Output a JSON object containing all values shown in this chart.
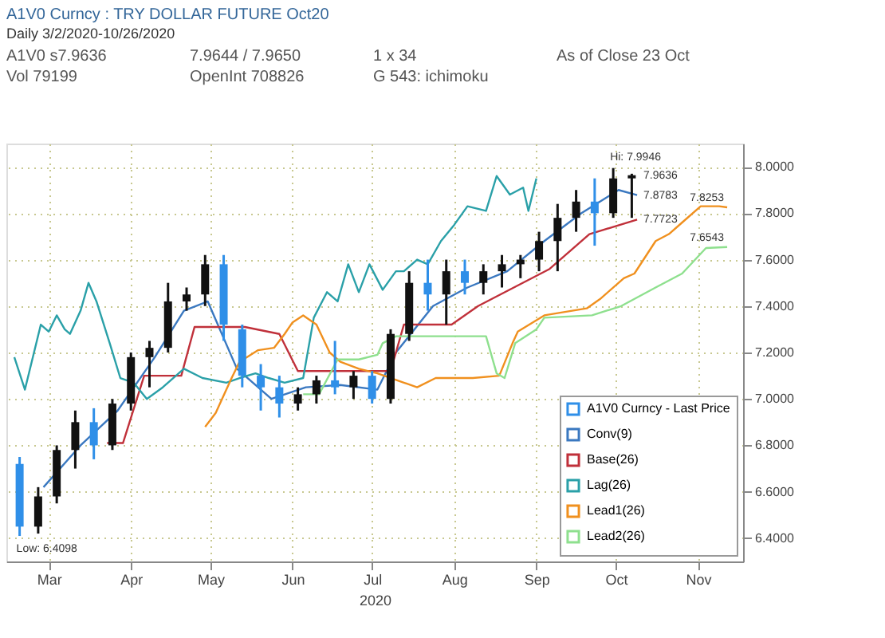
{
  "chart_data": {
    "type": "candlestick",
    "title": "A1V0 Curncy : TRY DOLLAR FUTURE Oct20",
    "subtitle": "Daily 3/2/2020-10/26/2020",
    "xlabel": "2020",
    "annotations": [
      "A1V0 s7.9636",
      "7.9644 / 7.9650",
      "1 x 34",
      "As of Close 23 Oct",
      "Vol 79199",
      "OpenInt 708826",
      "G 543: ichimoku",
      {
        "text": "Hi: 7.9946",
        "x": "2020-10-14",
        "y": 7.9946
      },
      {
        "text": "Low: 6.4098",
        "x": "2020-03-04",
        "y": 6.4098
      },
      {
        "text": "7.9636",
        "x": "2020-10-23",
        "y": 7.9636
      },
      {
        "text": "7.8783",
        "x": "2020-10-23",
        "y": 7.8783
      },
      {
        "text": "7.8253",
        "x": "2020-11-26",
        "y": 7.8253
      },
      {
        "text": "7.7723",
        "x": "2020-10-23",
        "y": 7.7723
      },
      {
        "text": "7.6543",
        "x": "2020-11-26",
        "y": 7.6543
      }
    ],
    "xlim": [
      "2020-02-28",
      "2020-12-02"
    ],
    "xticks": [
      {
        "value": "2020-03-15",
        "label": "Mar"
      },
      {
        "value": "2020-04-15",
        "label": "Apr"
      },
      {
        "value": "2020-05-15",
        "label": "May"
      },
      {
        "value": "2020-06-15",
        "label": "Jun"
      },
      {
        "value": "2020-07-15",
        "label": "Jul"
      },
      {
        "value": "2020-08-15",
        "label": "Aug"
      },
      {
        "value": "2020-09-15",
        "label": "Sep"
      },
      {
        "value": "2020-10-15",
        "label": "Oct"
      },
      {
        "value": "2020-11-15",
        "label": "Nov"
      }
    ],
    "ylim": [
      6.3,
      8.1
    ],
    "yticks": [
      {
        "value": 6.4,
        "label": "6.4000"
      },
      {
        "value": 6.6,
        "label": "6.6000"
      },
      {
        "value": 6.8,
        "label": "6.8000"
      },
      {
        "value": 7.0,
        "label": "7.0000"
      },
      {
        "value": 7.2,
        "label": "7.2000"
      },
      {
        "value": 7.4,
        "label": "7.4000"
      },
      {
        "value": 7.6,
        "label": "7.6000"
      },
      {
        "value": 7.8,
        "label": "7.8000"
      },
      {
        "value": 8.0,
        "label": "8.0000"
      }
    ],
    "grid": true,
    "legend": "bottom right",
    "marker": "none",
    "line_style": "solid",
    "series": [
      {
        "type": "candlestick",
        "name": "A1V0 Curncy - Last Price",
        "color": "#2f8fe8",
        "x": [
          "2020-03-04",
          "2020-03-11",
          "2020-03-18",
          "2020-03-25",
          "2020-04-01",
          "2020-04-08",
          "2020-04-15",
          "2020-04-22",
          "2020-04-29",
          "2020-05-06",
          "2020-05-13",
          "2020-05-20",
          "2020-05-27",
          "2020-06-03",
          "2020-06-10",
          "2020-06-17",
          "2020-06-24",
          "2020-07-01",
          "2020-07-08",
          "2020-07-15",
          "2020-07-22",
          "2020-07-29",
          "2020-08-05",
          "2020-08-12",
          "2020-08-19",
          "2020-08-26",
          "2020-09-02",
          "2020-09-09",
          "2020-09-16",
          "2020-09-23",
          "2020-09-30",
          "2020-10-07",
          "2020-10-14",
          "2020-10-21"
        ],
        "ohlc": [
          [
            6.72,
            6.75,
            6.4098,
            6.45
          ],
          [
            6.45,
            6.62,
            6.42,
            6.58
          ],
          [
            6.58,
            6.8,
            6.55,
            6.78
          ],
          [
            6.78,
            6.95,
            6.7,
            6.9
          ],
          [
            6.9,
            6.96,
            6.74,
            6.8
          ],
          [
            6.8,
            7.0,
            6.78,
            6.98
          ],
          [
            6.98,
            7.2,
            6.95,
            7.18
          ],
          [
            7.18,
            7.25,
            7.05,
            7.22
          ],
          [
            7.22,
            7.5,
            7.2,
            7.42
          ],
          [
            7.42,
            7.48,
            7.38,
            7.45
          ],
          [
            7.45,
            7.62,
            7.4,
            7.58
          ],
          [
            7.58,
            7.62,
            7.25,
            7.32
          ],
          [
            7.3,
            7.32,
            7.05,
            7.1
          ],
          [
            7.1,
            7.15,
            6.95,
            7.05
          ],
          [
            7.05,
            7.1,
            6.92,
            6.98
          ],
          [
            6.98,
            7.05,
            6.95,
            7.02
          ],
          [
            7.02,
            7.1,
            6.98,
            7.08
          ],
          [
            7.08,
            7.25,
            7.02,
            7.05
          ],
          [
            7.05,
            7.12,
            7.0,
            7.1
          ],
          [
            7.1,
            7.12,
            6.98,
            7.0
          ],
          [
            7.0,
            7.3,
            6.98,
            7.28
          ],
          [
            7.28,
            7.55,
            7.25,
            7.5
          ],
          [
            7.5,
            7.6,
            7.38,
            7.45
          ],
          [
            7.45,
            7.6,
            7.32,
            7.55
          ],
          [
            7.55,
            7.6,
            7.45,
            7.5
          ],
          [
            7.5,
            7.58,
            7.45,
            7.55
          ],
          [
            7.55,
            7.62,
            7.48,
            7.58
          ],
          [
            7.58,
            7.62,
            7.52,
            7.6
          ],
          [
            7.6,
            7.72,
            7.55,
            7.68
          ],
          [
            7.68,
            7.84,
            7.55,
            7.78
          ],
          [
            7.78,
            7.9,
            7.72,
            7.85
          ],
          [
            7.85,
            7.95,
            7.66,
            7.8
          ],
          [
            7.8,
            7.9946,
            7.78,
            7.95
          ],
          [
            7.95,
            7.97,
            7.78,
            7.9636
          ]
        ],
        "colors": [
          "#2f8fe8",
          "#111111",
          "#111111",
          "#111111",
          "#2f8fe8",
          "#111111",
          "#111111",
          "#111111",
          "#111111",
          "#111111",
          "#111111",
          "#2f8fe8",
          "#2f8fe8",
          "#2f8fe8",
          "#2f8fe8",
          "#111111",
          "#111111",
          "#2f8fe8",
          "#111111",
          "#2f8fe8",
          "#111111",
          "#111111",
          "#2f8fe8",
          "#111111",
          "#2f8fe8",
          "#111111",
          "#111111",
          "#111111",
          "#111111",
          "#111111",
          "#111111",
          "#2f8fe8",
          "#111111",
          "#111111"
        ]
      },
      {
        "type": "line",
        "name": "Conv(9)",
        "color": "#3a78c0",
        "x": [
          "2020-03-13",
          "2020-03-27",
          "2020-04-10",
          "2020-04-24",
          "2020-05-05",
          "2020-05-14",
          "2020-05-25",
          "2020-06-07",
          "2020-06-20",
          "2020-07-03",
          "2020-07-17",
          "2020-07-24",
          "2020-08-07",
          "2020-08-20",
          "2020-09-04",
          "2020-09-18",
          "2020-10-02",
          "2020-10-16",
          "2020-10-23"
        ],
        "values": [
          6.62,
          6.8,
          6.95,
          7.18,
          7.38,
          7.42,
          7.13,
          7.0,
          7.05,
          7.06,
          7.04,
          7.2,
          7.4,
          7.48,
          7.55,
          7.68,
          7.8,
          7.9,
          7.8783
        ]
      },
      {
        "type": "line",
        "name": "Base(26)",
        "color": "#c0303a",
        "x": [
          "2020-04-06",
          "2020-04-12",
          "2020-04-20",
          "2020-05-04",
          "2020-05-09",
          "2020-05-28",
          "2020-06-10",
          "2020-06-17",
          "2020-07-22",
          "2020-07-27",
          "2020-08-14",
          "2020-08-24",
          "2020-09-20",
          "2020-10-05",
          "2020-10-23"
        ],
        "values": [
          6.81,
          6.81,
          7.1,
          7.1,
          7.31,
          7.31,
          7.28,
          7.12,
          7.12,
          7.32,
          7.32,
          7.4,
          7.56,
          7.71,
          7.7723
        ]
      },
      {
        "type": "line",
        "name": "Lag(26)",
        "color": "#2aa0a8",
        "x": [
          "2020-03-02",
          "2020-03-06",
          "2020-03-12",
          "2020-03-15",
          "2020-03-18",
          "2020-03-21",
          "2020-03-23",
          "2020-03-27",
          "2020-03-30",
          "2020-04-02",
          "2020-04-07",
          "2020-04-11",
          "2020-04-16",
          "2020-04-21",
          "2020-04-27",
          "2020-05-05",
          "2020-05-12",
          "2020-05-21",
          "2020-05-26",
          "2020-06-01",
          "2020-06-06",
          "2020-06-12",
          "2020-06-19",
          "2020-06-23",
          "2020-06-28",
          "2020-07-02",
          "2020-07-06",
          "2020-07-10",
          "2020-07-14",
          "2020-07-19",
          "2020-07-24",
          "2020-07-27",
          "2020-08-01",
          "2020-08-05",
          "2020-08-10",
          "2020-08-15",
          "2020-08-20",
          "2020-08-27",
          "2020-08-31",
          "2020-09-05",
          "2020-09-10",
          "2020-09-12",
          "2020-09-15"
        ],
        "values": [
          7.18,
          7.04,
          7.32,
          7.29,
          7.36,
          7.3,
          7.28,
          7.38,
          7.5,
          7.42,
          7.24,
          7.09,
          7.07,
          7.0,
          7.05,
          7.13,
          7.09,
          7.07,
          7.09,
          7.11,
          7.09,
          7.07,
          7.09,
          7.35,
          7.46,
          7.42,
          7.58,
          7.46,
          7.58,
          7.47,
          7.55,
          7.55,
          7.6,
          7.58,
          7.68,
          7.75,
          7.83,
          7.81,
          7.96,
          7.88,
          7.91,
          7.81,
          7.95
        ]
      },
      {
        "type": "line",
        "name": "Lead1(26)",
        "color": "#f0901e",
        "x": [
          "2020-05-13",
          "2020-05-17",
          "2020-05-23",
          "2020-05-26",
          "2020-06-02",
          "2020-06-08",
          "2020-06-12",
          "2020-06-15",
          "2020-06-19",
          "2020-06-24",
          "2020-06-29",
          "2020-07-03",
          "2020-07-10",
          "2020-07-17",
          "2020-07-27",
          "2020-08-01",
          "2020-08-08",
          "2020-08-22",
          "2020-09-01",
          "2020-09-06",
          "2020-09-08",
          "2020-09-18",
          "2020-10-04",
          "2020-10-09",
          "2020-10-18",
          "2020-10-22",
          "2020-10-30",
          "2020-11-04",
          "2020-11-09",
          "2020-11-16",
          "2020-11-23",
          "2020-11-26"
        ],
        "values": [
          6.88,
          6.94,
          7.09,
          7.16,
          7.21,
          7.22,
          7.28,
          7.33,
          7.36,
          7.32,
          7.2,
          7.16,
          7.13,
          7.11,
          7.07,
          7.05,
          7.09,
          7.09,
          7.1,
          7.24,
          7.29,
          7.36,
          7.39,
          7.43,
          7.52,
          7.54,
          7.68,
          7.71,
          7.76,
          7.83,
          7.83,
          7.8253
        ]
      },
      {
        "type": "line",
        "name": "Lead2(26)",
        "color": "#8ee08e",
        "x": [
          "2020-06-19",
          "2020-06-25",
          "2020-07-02",
          "2020-07-10",
          "2020-07-17",
          "2020-07-19",
          "2020-07-24",
          "2020-08-27",
          "2020-08-31",
          "2020-09-03",
          "2020-09-07",
          "2020-09-15",
          "2020-09-18",
          "2020-10-06",
          "2020-10-17",
          "2020-10-30",
          "2020-11-09",
          "2020-11-18",
          "2020-11-26"
        ],
        "values": [
          7.02,
          7.02,
          7.17,
          7.17,
          7.19,
          7.24,
          7.27,
          7.27,
          7.11,
          7.09,
          7.24,
          7.3,
          7.35,
          7.36,
          7.4,
          7.48,
          7.54,
          7.65,
          7.6543
        ]
      }
    ]
  }
}
